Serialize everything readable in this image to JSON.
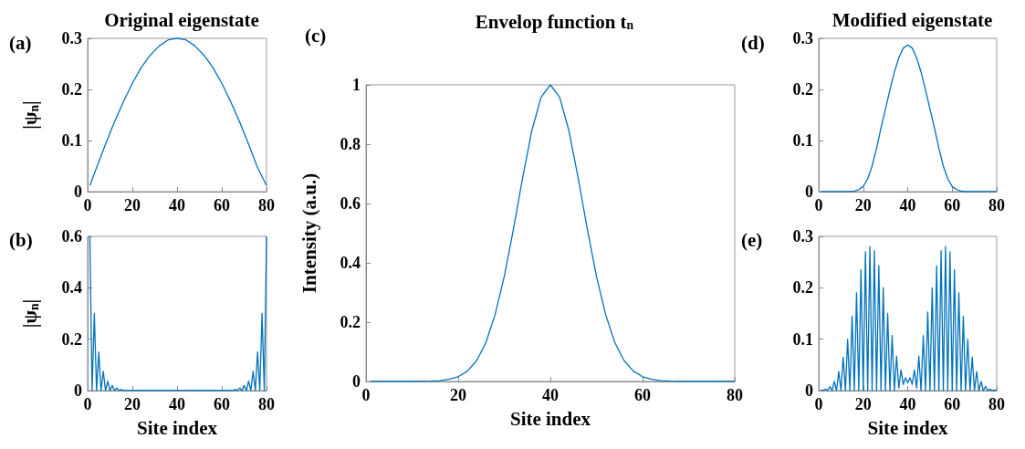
{
  "chart_data": [
    {
      "type": "line",
      "title": "Original eigenstate",
      "ylabel": "|ψ$_{n}$|",
      "annotations": [
        "(a)"
      ],
      "xlim": [
        0,
        80
      ],
      "xticks": [
        0,
        20,
        40,
        60,
        80
      ],
      "ylim": [
        0,
        0.3
      ],
      "yticks": [
        0,
        0.1,
        0.2,
        0.3
      ],
      "marker": "none",
      "line_style": "solid",
      "series": [
        {
          "color": "#0072bd",
          "x": [
            1,
            4,
            8,
            12,
            16,
            20,
            24,
            28,
            32,
            36,
            40,
            44,
            48,
            52,
            56,
            60,
            64,
            68,
            72,
            76,
            80
          ],
          "values": [
            0.012,
            0.047,
            0.093,
            0.136,
            0.176,
            0.212,
            0.243,
            0.267,
            0.285,
            0.297,
            0.3,
            0.297,
            0.285,
            0.267,
            0.243,
            0.212,
            0.176,
            0.136,
            0.093,
            0.047,
            0.012
          ]
        }
      ]
    },
    {
      "type": "line",
      "xlabel": "Site index",
      "ylabel": "|ψ$_{n}$|",
      "annotations": [
        "(b)"
      ],
      "xlim": [
        0,
        80
      ],
      "xticks": [
        0,
        20,
        40,
        60,
        80
      ],
      "ylim": [
        0,
        0.6
      ],
      "yticks": [
        0,
        0.2,
        0.4,
        0.6
      ],
      "marker": "none",
      "line_style": "solid",
      "series": [
        {
          "color": "#0072bd",
          "x": [
            1,
            2,
            3,
            4,
            5,
            6,
            7,
            8,
            9,
            10,
            11,
            12,
            13,
            14,
            15,
            16,
            40,
            65,
            66,
            67,
            68,
            69,
            70,
            71,
            72,
            73,
            74,
            75,
            76,
            77,
            78,
            79,
            80
          ],
          "values": [
            0.6,
            0,
            0.3,
            0,
            0.15,
            0,
            0.075,
            0,
            0.037,
            0,
            0.02,
            0,
            0.01,
            0,
            0.005,
            0,
            0,
            0,
            0.005,
            0,
            0.01,
            0,
            0.02,
            0,
            0.037,
            0,
            0.075,
            0,
            0.15,
            0,
            0.3,
            0,
            0.6
          ]
        }
      ]
    },
    {
      "type": "line",
      "title": "Envelop function t$_{n}$",
      "xlabel": "Site index",
      "ylabel": "Intensity (a.u.)",
      "annotations": [
        "(c)"
      ],
      "xlim": [
        0,
        80
      ],
      "xticks": [
        0,
        20,
        40,
        60,
        80
      ],
      "ylim": [
        0,
        1
      ],
      "yticks": [
        0,
        0.2,
        0.4,
        0.6,
        0.8,
        1
      ],
      "marker": "none",
      "line_style": "solid",
      "series": [
        {
          "color": "#0072bd",
          "x": [
            1,
            12,
            14,
            16,
            18,
            20,
            22,
            24,
            26,
            28,
            30,
            32,
            34,
            36,
            38,
            40,
            42,
            44,
            46,
            48,
            50,
            52,
            54,
            56,
            58,
            60,
            62,
            64,
            66,
            68,
            80
          ],
          "values": [
            0,
            0,
            0.001,
            0.003,
            0.007,
            0.016,
            0.035,
            0.07,
            0.131,
            0.225,
            0.354,
            0.515,
            0.688,
            0.847,
            0.959,
            1,
            0.959,
            0.847,
            0.688,
            0.515,
            0.354,
            0.225,
            0.131,
            0.07,
            0.035,
            0.016,
            0.007,
            0.003,
            0.001,
            0,
            0
          ]
        }
      ]
    },
    {
      "type": "line",
      "title": "Modified eigenstate",
      "annotations": [
        "(d)"
      ],
      "xlim": [
        0,
        80
      ],
      "xticks": [
        0,
        20,
        40,
        60,
        80
      ],
      "ylim": [
        0,
        0.3
      ],
      "yticks": [
        0,
        0.1,
        0.2,
        0.3
      ],
      "marker": "none",
      "line_style": "solid",
      "series": [
        {
          "color": "#0072bd",
          "x": [
            1,
            14,
            16,
            18,
            20,
            22,
            24,
            26,
            28,
            30,
            32,
            34,
            36,
            38,
            40,
            42,
            44,
            46,
            48,
            50,
            52,
            54,
            56,
            58,
            60,
            62,
            64,
            66,
            80
          ],
          "values": [
            0,
            0,
            0.001,
            0.004,
            0.01,
            0.025,
            0.05,
            0.085,
            0.125,
            0.162,
            0.199,
            0.234,
            0.262,
            0.281,
            0.287,
            0.281,
            0.262,
            0.234,
            0.199,
            0.162,
            0.125,
            0.085,
            0.05,
            0.025,
            0.01,
            0.004,
            0.001,
            0,
            0
          ]
        }
      ]
    },
    {
      "type": "line",
      "xlabel": "Site index",
      "annotations": [
        "(e)"
      ],
      "xlim": [
        0,
        80
      ],
      "xticks": [
        0,
        20,
        40,
        60,
        80
      ],
      "ylim": [
        0,
        0.3
      ],
      "yticks": [
        0,
        0.1,
        0.2,
        0.3
      ],
      "marker": "none",
      "line_style": "solid",
      "series": [
        {
          "color": "#0072bd",
          "x": [
            1,
            2,
            3,
            4,
            5,
            6,
            7,
            8,
            9,
            10,
            11,
            12,
            13,
            14,
            15,
            16,
            17,
            18,
            19,
            20,
            21,
            22,
            23,
            24,
            25,
            26,
            27,
            28,
            29,
            30,
            31,
            32,
            33,
            34,
            35,
            36,
            37,
            38,
            39,
            40,
            41,
            42,
            43,
            44,
            45,
            46,
            47,
            48,
            49,
            50,
            51,
            52,
            53,
            54,
            55,
            56,
            57,
            58,
            59,
            60,
            61,
            62,
            63,
            64,
            65,
            66,
            67,
            68,
            69,
            70,
            71,
            72,
            73,
            74,
            75,
            76,
            77,
            78,
            79,
            80
          ],
          "values": [
            0.001,
            0,
            0.003,
            0,
            0.008,
            0,
            0.018,
            0,
            0.037,
            0,
            0.065,
            0,
            0.1,
            0,
            0.145,
            0,
            0.19,
            0,
            0.235,
            0,
            0.27,
            0,
            0.28,
            0,
            0.272,
            0,
            0.243,
            0,
            0.2,
            0,
            0.15,
            0,
            0.107,
            0,
            0.067,
            0.005,
            0.04,
            0.012,
            0.025,
            0.015,
            0.025,
            0.012,
            0.04,
            0.005,
            0.067,
            0,
            0.107,
            0,
            0.153,
            0,
            0.2,
            0,
            0.243,
            0,
            0.272,
            0,
            0.28,
            0,
            0.27,
            0,
            0.235,
            0,
            0.19,
            0,
            0.145,
            0,
            0.1,
            0,
            0.065,
            0,
            0.037,
            0,
            0.018,
            0,
            0.008,
            0,
            0.003,
            0,
            0.001,
            0
          ]
        }
      ]
    }
  ]
}
